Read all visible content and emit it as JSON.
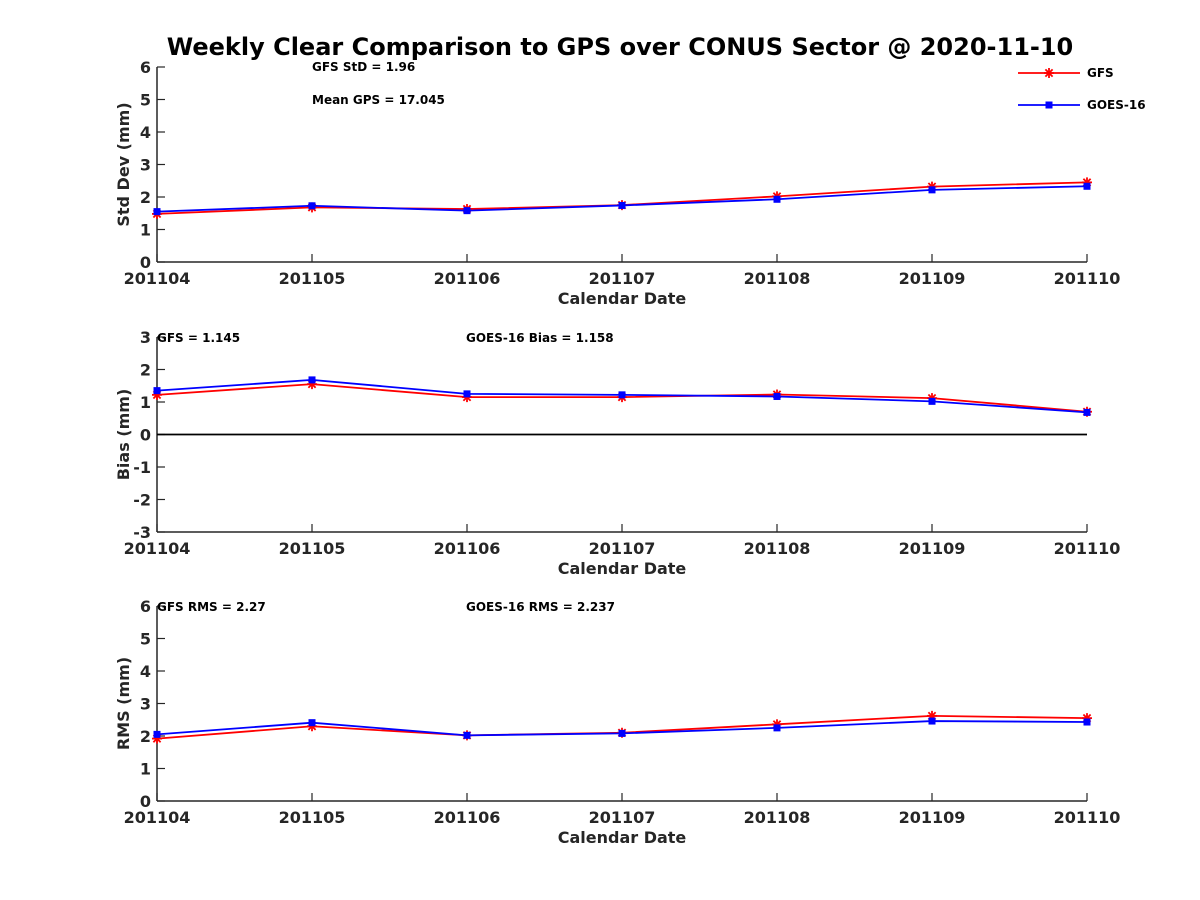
{
  "title": "Weekly Clear Comparison to GPS over CONUS Sector @ 2020-11-10",
  "colors": {
    "GFS": "#ff0000",
    "GOES-16": "#0000ff",
    "axis": "#262626"
  },
  "legend": {
    "placement": "top-right",
    "entries": [
      {
        "label": "GFS",
        "marker": "asterisk"
      },
      {
        "label": "GOES-16",
        "marker": "square"
      }
    ]
  },
  "chart_data": [
    {
      "type": "line",
      "categories": [
        "201104",
        "201105",
        "201106",
        "201107",
        "201108",
        "201109",
        "201110"
      ],
      "xlabel": "Calendar Date",
      "ylabel": "Std Dev (mm)",
      "ylim": [
        0,
        6
      ],
      "yticks": [
        "0",
        "1",
        "2",
        "3",
        "4",
        "5",
        "6"
      ],
      "zero_line": false,
      "annotations": [
        "GFS StD = 1.96",
        "Mean GPS = 17.045"
      ],
      "series": [
        {
          "name": "GFS",
          "values": [
            1.48,
            1.68,
            1.63,
            1.75,
            2.02,
            2.32,
            2.45
          ]
        },
        {
          "name": "GOES-16",
          "values": [
            1.55,
            1.73,
            1.58,
            1.74,
            1.93,
            2.22,
            2.33
          ]
        }
      ]
    },
    {
      "type": "line",
      "categories": [
        "201104",
        "201105",
        "201106",
        "201107",
        "201108",
        "201109",
        "201110"
      ],
      "xlabel": "Calendar Date",
      "ylabel": "Bias (mm)",
      "ylim": [
        -3,
        3
      ],
      "yticks": [
        "-3",
        "-2",
        "-1",
        "0",
        "1",
        "2",
        "3"
      ],
      "zero_line": true,
      "annotations": [
        "GFS = 1.145",
        "GOES-16 Bias  = 1.158"
      ],
      "series": [
        {
          "name": "GFS",
          "values": [
            1.22,
            1.55,
            1.15,
            1.15,
            1.23,
            1.12,
            0.7
          ]
        },
        {
          "name": "GOES-16",
          "values": [
            1.35,
            1.68,
            1.25,
            1.22,
            1.17,
            1.02,
            0.68
          ]
        }
      ]
    },
    {
      "type": "line",
      "categories": [
        "201104",
        "201105",
        "201106",
        "201107",
        "201108",
        "201109",
        "201110"
      ],
      "xlabel": "Calendar Date",
      "ylabel": "RMS (mm)",
      "ylim": [
        0,
        6
      ],
      "yticks": [
        "0",
        "1",
        "2",
        "3",
        "4",
        "5",
        "6"
      ],
      "zero_line": false,
      "annotations": [
        "GFS RMS = 2.27",
        "GOES-16 RMS = 2.237"
      ],
      "series": [
        {
          "name": "GFS",
          "values": [
            1.92,
            2.3,
            2.02,
            2.1,
            2.36,
            2.62,
            2.55
          ]
        },
        {
          "name": "GOES-16",
          "values": [
            2.05,
            2.41,
            2.02,
            2.08,
            2.25,
            2.46,
            2.43
          ]
        }
      ]
    }
  ]
}
